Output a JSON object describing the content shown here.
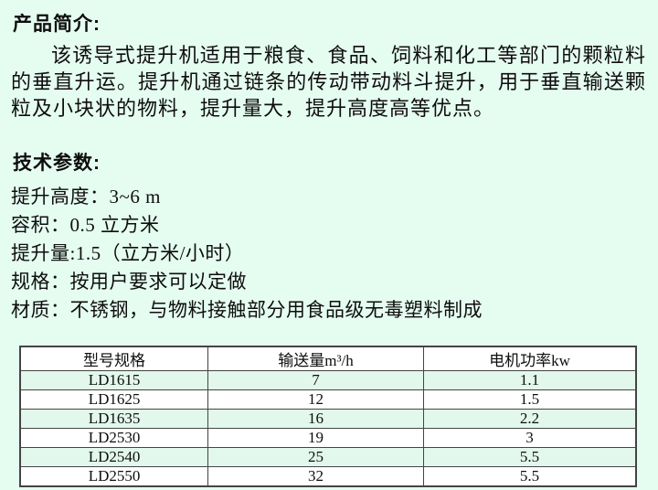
{
  "intro": {
    "heading": "产品简介:",
    "paragraph": "该诱导式提升机适用于粮食、食品、饲料和化工等部门的颗粒料的垂直升运。提升机通过链条的传动带动料斗提升，用于垂直输送颗粒及小块状的物料，提升量大，提升高度高等优点。"
  },
  "params": {
    "heading": "技术参数:",
    "lines": [
      "提升高度：3~6 m",
      "容积：0.5 立方米",
      "提升量:1.5（立方米/小时）",
      "规格：按用户要求可以定做",
      "材质：不锈钢，与物料接触部分用食品级无毒塑料制成"
    ]
  },
  "spec_table": {
    "headers": [
      "型号规格",
      "输送量m³/h",
      "电机功率kw"
    ],
    "rows": [
      [
        "LD1615",
        "7",
        "1.1"
      ],
      [
        "LD1625",
        "12",
        "1.5"
      ],
      [
        "LD1635",
        "16",
        "2.2"
      ],
      [
        "LD2530",
        "19",
        "3"
      ],
      [
        "LD2540",
        "25",
        "5.5"
      ],
      [
        "LD2550",
        "32",
        "5.5"
      ]
    ]
  },
  "colors": {
    "page_bg": "#e5fcf1",
    "row_tint": "#e2f8ec",
    "table_border": "#444444",
    "text": "#0e0e0e"
  }
}
